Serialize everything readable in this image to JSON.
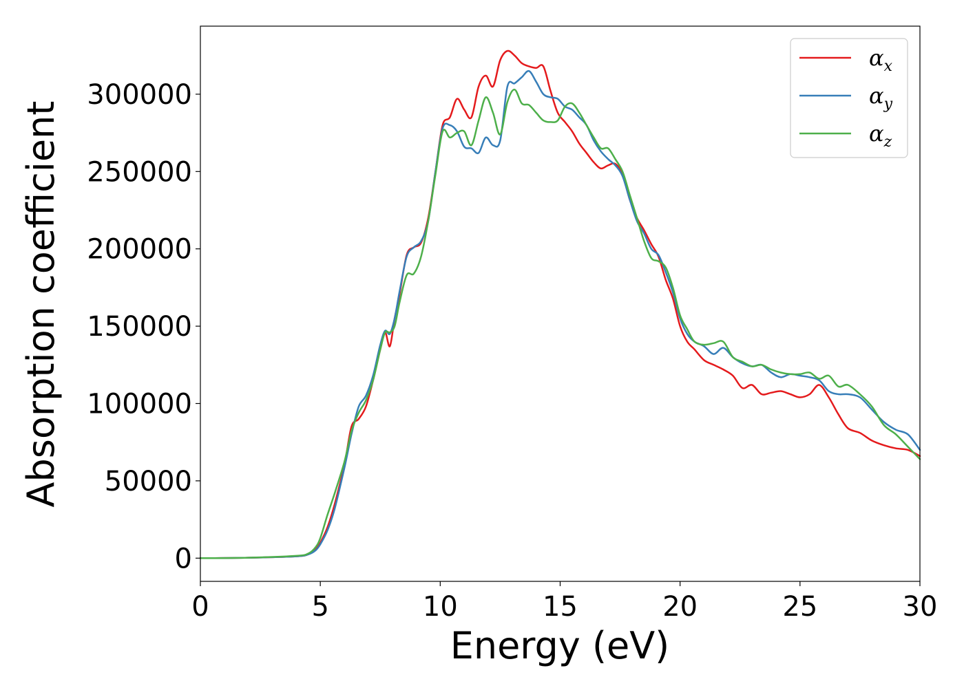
{
  "chart_data": {
    "type": "line",
    "title": "",
    "xlabel": "Energy (eV)",
    "ylabel": "Absorption coefficient",
    "xlim": [
      0,
      30
    ],
    "ylim": [
      -15000,
      344000
    ],
    "xticks": [
      0,
      5,
      10,
      15,
      20,
      25,
      30
    ],
    "yticks": [
      0,
      50000,
      100000,
      150000,
      200000,
      250000,
      300000
    ],
    "grid": false,
    "legend_position": "top-right",
    "series": [
      {
        "name": "α_x",
        "symbol": "α",
        "subscript": "x",
        "color": "#e41a1c",
        "x": [
          0,
          2,
          4,
          4.5,
          4.8,
          5,
          5.3,
          5.6,
          6,
          6.3,
          6.6,
          6.9,
          7.2,
          7.5,
          7.7,
          7.9,
          8.1,
          8.3,
          8.6,
          8.9,
          9.2,
          9.5,
          9.8,
          10.1,
          10.4,
          10.7,
          11,
          11.3,
          11.6,
          11.9,
          12.2,
          12.5,
          12.8,
          13.1,
          13.4,
          13.7,
          14,
          14.3,
          14.6,
          14.9,
          15.2,
          15.5,
          15.8,
          16.1,
          16.4,
          16.7,
          17,
          17.3,
          17.6,
          17.9,
          18.2,
          18.5,
          18.8,
          19.1,
          19.4,
          19.7,
          20,
          20.3,
          20.6,
          21,
          21.4,
          21.8,
          22.2,
          22.6,
          23,
          23.4,
          23.8,
          24.2,
          24.6,
          25,
          25.4,
          25.8,
          26.2,
          26.6,
          27,
          27.5,
          28,
          28.5,
          29,
          29.5,
          30
        ],
        "y": [
          0,
          300,
          1200,
          2500,
          5500,
          10000,
          20000,
          35000,
          60000,
          85000,
          90000,
          98000,
          115000,
          135000,
          146000,
          137000,
          155000,
          170000,
          196000,
          201000,
          204000,
          220000,
          250000,
          280000,
          285000,
          297000,
          290000,
          285000,
          305000,
          312000,
          305000,
          322000,
          328000,
          325000,
          320000,
          318000,
          317000,
          318000,
          302000,
          288000,
          282000,
          276000,
          268000,
          262000,
          256000,
          252000,
          254000,
          255000,
          248000,
          232000,
          220000,
          212000,
          203000,
          195000,
          180000,
          168000,
          150000,
          140000,
          135000,
          128000,
          125000,
          122000,
          118000,
          110000,
          112000,
          106000,
          107000,
          108000,
          106000,
          104000,
          106000,
          112000,
          104000,
          93000,
          84000,
          81000,
          76000,
          73000,
          71000,
          70000,
          66000
        ]
      },
      {
        "name": "α_y",
        "symbol": "α",
        "subscript": "y",
        "color": "#377eb8",
        "x": [
          0,
          2,
          4,
          4.5,
          4.8,
          5,
          5.3,
          5.6,
          6,
          6.3,
          6.6,
          6.9,
          7.2,
          7.5,
          7.7,
          7.9,
          8.1,
          8.3,
          8.6,
          8.9,
          9.2,
          9.5,
          9.8,
          10.1,
          10.4,
          10.7,
          11,
          11.3,
          11.6,
          11.9,
          12.2,
          12.5,
          12.8,
          13.1,
          13.4,
          13.7,
          14,
          14.3,
          14.6,
          14.9,
          15.2,
          15.5,
          15.8,
          16.1,
          16.4,
          16.7,
          17,
          17.3,
          17.6,
          17.9,
          18.2,
          18.5,
          18.8,
          19.1,
          19.4,
          19.7,
          20,
          20.3,
          20.6,
          21,
          21.4,
          21.8,
          22.2,
          22.6,
          23,
          23.4,
          23.8,
          24.2,
          24.6,
          25,
          25.4,
          25.8,
          26.2,
          26.6,
          27,
          27.5,
          28,
          28.5,
          29,
          29.5,
          30
        ],
        "y": [
          0,
          300,
          1200,
          2500,
          5000,
          9000,
          18000,
          32000,
          58000,
          80000,
          98000,
          105000,
          118000,
          138000,
          147000,
          145000,
          155000,
          172000,
          195000,
          201000,
          205000,
          218000,
          250000,
          278000,
          280000,
          276000,
          266000,
          265000,
          262000,
          272000,
          267000,
          270000,
          305000,
          307000,
          311000,
          315000,
          308000,
          300000,
          298000,
          297000,
          292000,
          290000,
          285000,
          280000,
          270000,
          263000,
          258000,
          254000,
          247000,
          232000,
          218000,
          210000,
          200000,
          196000,
          185000,
          172000,
          155000,
          145000,
          140000,
          137000,
          132000,
          136000,
          130000,
          126000,
          124000,
          125000,
          120000,
          117000,
          119000,
          118000,
          117000,
          115000,
          108000,
          106000,
          106000,
          104000,
          96000,
          88000,
          83000,
          80000,
          70000
        ]
      },
      {
        "name": "α_z",
        "symbol": "α",
        "subscript": "z",
        "color": "#4daf4a",
        "x": [
          0,
          2,
          4,
          4.5,
          4.8,
          5,
          5.3,
          5.6,
          6,
          6.3,
          6.6,
          6.9,
          7.2,
          7.5,
          7.7,
          7.9,
          8.1,
          8.3,
          8.6,
          8.9,
          9.2,
          9.5,
          9.8,
          10.1,
          10.4,
          10.7,
          11,
          11.3,
          11.6,
          11.9,
          12.2,
          12.5,
          12.8,
          13.1,
          13.4,
          13.7,
          14,
          14.3,
          14.6,
          14.9,
          15.2,
          15.5,
          15.8,
          16.1,
          16.4,
          16.7,
          17,
          17.3,
          17.6,
          17.9,
          18.2,
          18.5,
          18.8,
          19.1,
          19.4,
          19.7,
          20,
          20.3,
          20.6,
          21,
          21.4,
          21.8,
          22.2,
          22.6,
          23,
          23.4,
          23.8,
          24.2,
          24.6,
          25,
          25.4,
          25.8,
          26.2,
          26.6,
          27,
          27.5,
          28,
          28.5,
          29,
          29.5,
          30
        ],
        "y": [
          0,
          300,
          1500,
          3000,
          7000,
          13000,
          28000,
          42000,
          62000,
          82000,
          94000,
          102000,
          115000,
          135000,
          146000,
          146000,
          150000,
          165000,
          183000,
          184000,
          195000,
          218000,
          248000,
          276000,
          272000,
          275000,
          276000,
          267000,
          283000,
          298000,
          288000,
          274000,
          295000,
          303000,
          294000,
          293000,
          288000,
          283000,
          282000,
          283000,
          292000,
          294000,
          288000,
          280000,
          272000,
          265000,
          265000,
          258000,
          250000,
          235000,
          220000,
          205000,
          194000,
          192000,
          188000,
          175000,
          157000,
          148000,
          140000,
          138000,
          139000,
          140000,
          130000,
          127000,
          124000,
          125000,
          122000,
          120000,
          119000,
          119000,
          120000,
          116000,
          118000,
          111000,
          112000,
          106000,
          98000,
          86000,
          80000,
          72000,
          64000
        ]
      }
    ]
  }
}
